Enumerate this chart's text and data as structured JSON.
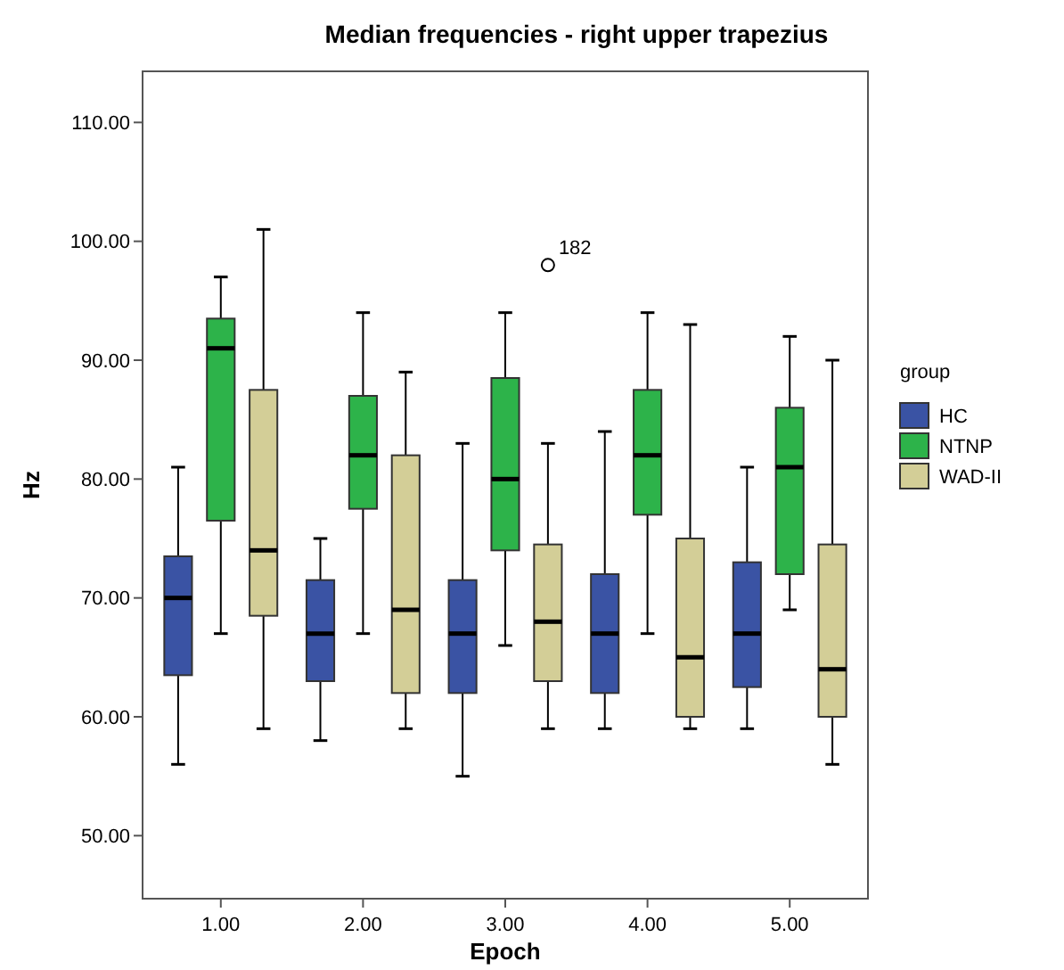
{
  "chart_data": {
    "type": "box",
    "title": "Median frequencies - right upper trapezius",
    "xlabel": "Epoch",
    "ylabel": "Hz",
    "legend_title": "group",
    "legend": "right",
    "grid": false,
    "categories": [
      "1.00",
      "2.00",
      "3.00",
      "4.00",
      "5.00"
    ],
    "ylim": [
      44.7,
      114.3
    ],
    "yticks": [
      {
        "value": 50,
        "label": "50.00"
      },
      {
        "value": 60,
        "label": "60.00"
      },
      {
        "value": 70,
        "label": "70.00"
      },
      {
        "value": 80,
        "label": "80.00"
      },
      {
        "value": 90,
        "label": "90.00"
      },
      {
        "value": 100,
        "label": "100.00"
      },
      {
        "value": 110,
        "label": "110.00"
      }
    ],
    "series": [
      {
        "name": "HC",
        "color": "#3a53a4",
        "boxes": [
          {
            "low": 56,
            "q1": 63.5,
            "median": 70,
            "q3": 73.5,
            "high": 81
          },
          {
            "low": 58,
            "q1": 63,
            "median": 67,
            "q3": 71.5,
            "high": 75
          },
          {
            "low": 55,
            "q1": 62,
            "median": 67,
            "q3": 71.5,
            "high": 83
          },
          {
            "low": 59,
            "q1": 62,
            "median": 67,
            "q3": 72,
            "high": 84
          },
          {
            "low": 59,
            "q1": 62.5,
            "median": 67,
            "q3": 73,
            "high": 81
          }
        ]
      },
      {
        "name": "NTNP",
        "color": "#2db34a",
        "boxes": [
          {
            "low": 67,
            "q1": 76.5,
            "median": 91,
            "q3": 93.5,
            "high": 97
          },
          {
            "low": 67,
            "q1": 77.5,
            "median": 82,
            "q3": 87,
            "high": 94
          },
          {
            "low": 66,
            "q1": 74,
            "median": 80,
            "q3": 88.5,
            "high": 94
          },
          {
            "low": 67,
            "q1": 77,
            "median": 82,
            "q3": 87.5,
            "high": 94
          },
          {
            "low": 69,
            "q1": 72,
            "median": 81,
            "q3": 86,
            "high": 92
          }
        ]
      },
      {
        "name": "WAD-II",
        "color": "#d3ce97",
        "boxes": [
          {
            "low": 59,
            "q1": 68.5,
            "median": 74,
            "q3": 87.5,
            "high": 101
          },
          {
            "low": 59,
            "q1": 62,
            "median": 69,
            "q3": 82,
            "high": 89
          },
          {
            "low": 59,
            "q1": 63,
            "median": 68,
            "q3": 74.5,
            "high": 83,
            "outliers": [
              98
            ]
          },
          {
            "low": 59,
            "q1": 60,
            "median": 65,
            "q3": 75,
            "high": 93
          },
          {
            "low": 56,
            "q1": 60,
            "median": 64,
            "q3": 74.5,
            "high": 90
          }
        ]
      }
    ],
    "annotations": [
      "182"
    ]
  }
}
